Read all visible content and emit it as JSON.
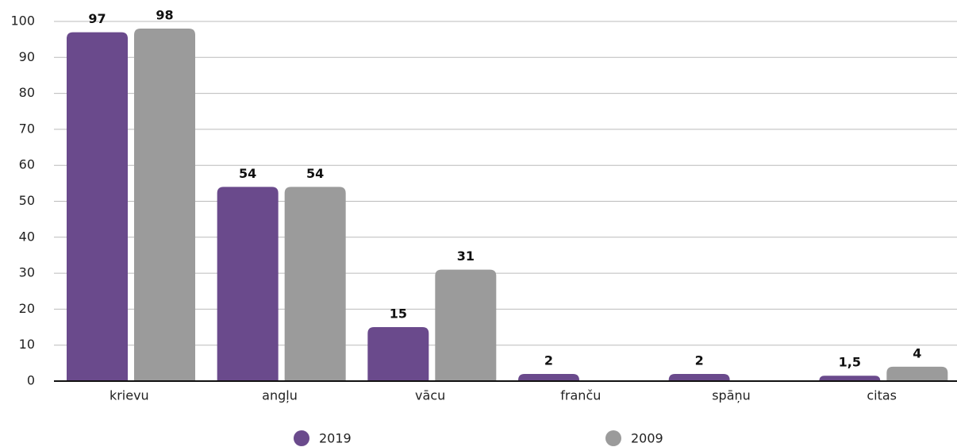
{
  "chart_data": {
    "type": "bar",
    "categories": [
      "krievu",
      "angļu",
      "vācu",
      "franču",
      "spāņu",
      "citas"
    ],
    "series": [
      {
        "name": "2019",
        "color": "#6a4a8c",
        "values": [
          97,
          54,
          15,
          2,
          2,
          1.5
        ],
        "value_labels": [
          "97",
          "54",
          "15",
          "2",
          "2",
          "1,5"
        ]
      },
      {
        "name": "2009",
        "color": "#9b9b9b",
        "values": [
          98,
          54,
          31,
          null,
          null,
          4
        ],
        "value_labels": [
          "98",
          "54",
          "31",
          null,
          null,
          "4"
        ]
      }
    ],
    "ylim": [
      0,
      100
    ],
    "yticks": [
      0,
      10,
      20,
      30,
      40,
      50,
      60,
      70,
      80,
      90,
      100
    ],
    "grid": true,
    "legend": "bottom"
  }
}
